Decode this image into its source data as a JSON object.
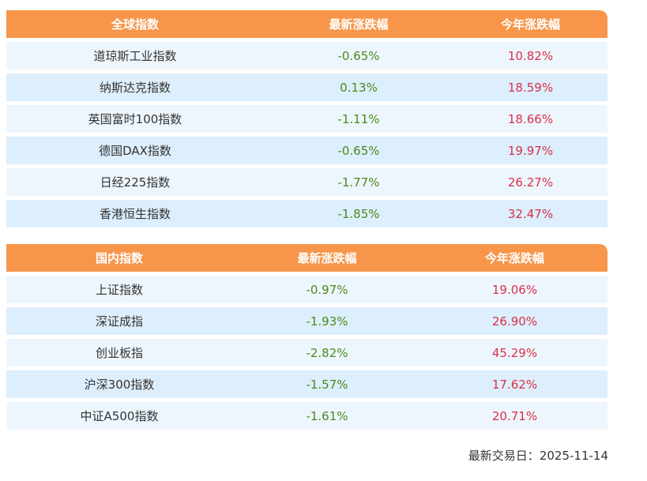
{
  "global": {
    "headers": [
      "全球指数",
      "最新涨跌幅",
      "今年涨跌幅"
    ],
    "rows": [
      {
        "name": "道琼斯工业指数",
        "latest": "-0.65%",
        "ytd": "10.82%"
      },
      {
        "name": "纳斯达克指数",
        "latest": "0.13%",
        "ytd": "18.59%"
      },
      {
        "name": "英国富时100指数",
        "latest": "-1.11%",
        "ytd": "18.66%"
      },
      {
        "name": "德国DAX指数",
        "latest": "-0.65%",
        "ytd": "19.97%"
      },
      {
        "name": "日经225指数",
        "latest": "-1.77%",
        "ytd": "26.27%"
      },
      {
        "name": "香港恒生指数",
        "latest": "-1.85%",
        "ytd": "32.47%"
      }
    ]
  },
  "domestic": {
    "headers": [
      "国内指数",
      "最新涨跌幅",
      "今年涨跌幅"
    ],
    "rows": [
      {
        "name": "上证指数",
        "latest": "-0.97%",
        "ytd": "19.06%"
      },
      {
        "name": "深证成指",
        "latest": "-1.93%",
        "ytd": "26.90%"
      },
      {
        "name": "创业板指",
        "latest": "-2.82%",
        "ytd": "45.29%"
      },
      {
        "name": "沪深300指数",
        "latest": "-1.57%",
        "ytd": "17.62%"
      },
      {
        "name": "中证A500指数",
        "latest": "-1.61%",
        "ytd": "20.71%"
      }
    ]
  },
  "footer": {
    "label": "最新交易日：",
    "date": "2025-11-14"
  },
  "colors": {
    "header_bg": "#f7964a",
    "row_light": "#eef6fd",
    "row_dark": "#ddeefc",
    "latest_value": "#4a8a1c",
    "ytd_value": "#d9304a"
  }
}
